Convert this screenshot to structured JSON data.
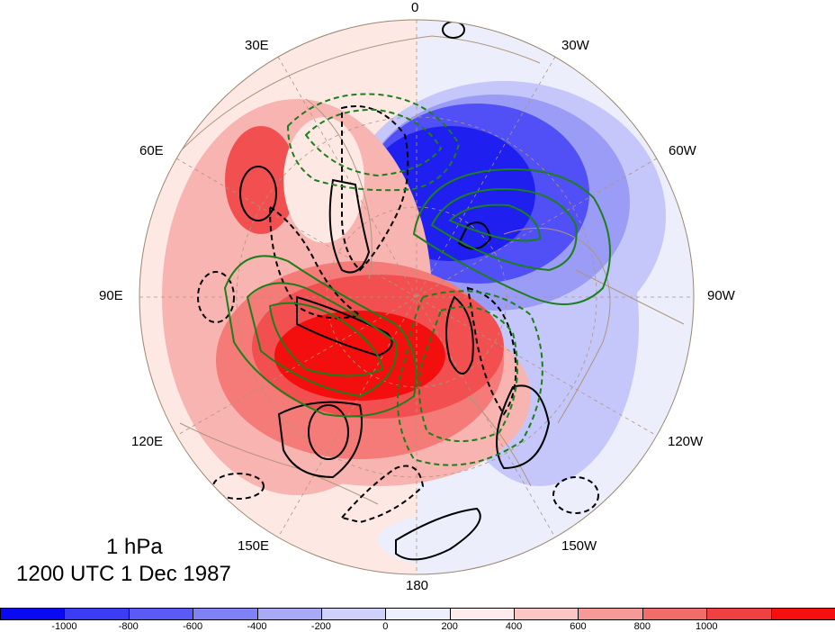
{
  "map": {
    "projection": "north polar stereographic",
    "longitude_labels": [
      "0",
      "30W",
      "60W",
      "90W",
      "120W",
      "150W",
      "180",
      "150E",
      "120E",
      "90E",
      "60E",
      "30E"
    ],
    "fill_colors": {
      "strong_blue": "#1f1ff0",
      "mid_blue": "#5050f6",
      "light_blue": "#9a9cf6",
      "pale_blue": "#c5c7fa",
      "faint_blue": "#eceefc",
      "faint_red": "#fde8e4",
      "pale_red": "#f8b4b0",
      "light_red": "#f47b77",
      "mid_red": "#f25050",
      "strong_red": "#f40f0f"
    },
    "contour_colors": {
      "black": "#000000",
      "green": "#1b7f1b"
    },
    "coastline_color": "#b0957e"
  },
  "title": {
    "line1": "1 hPa",
    "line2": "1200 UTC 1 Dec 1987"
  },
  "colorbar": {
    "ticks": [
      "-1000",
      "-800",
      "-600",
      "-400",
      "-200",
      "0",
      "200",
      "400",
      "600",
      "800",
      "1000"
    ],
    "colors": [
      "#0a0af2",
      "#3c3cf5",
      "#5a5af6",
      "#7f81f5",
      "#a8aaf8",
      "#d0d1fb",
      "#eeeffd",
      "#fdeceb",
      "#fbc6c3",
      "#f59a96",
      "#f26c68",
      "#ef4141",
      "#f51010"
    ]
  }
}
